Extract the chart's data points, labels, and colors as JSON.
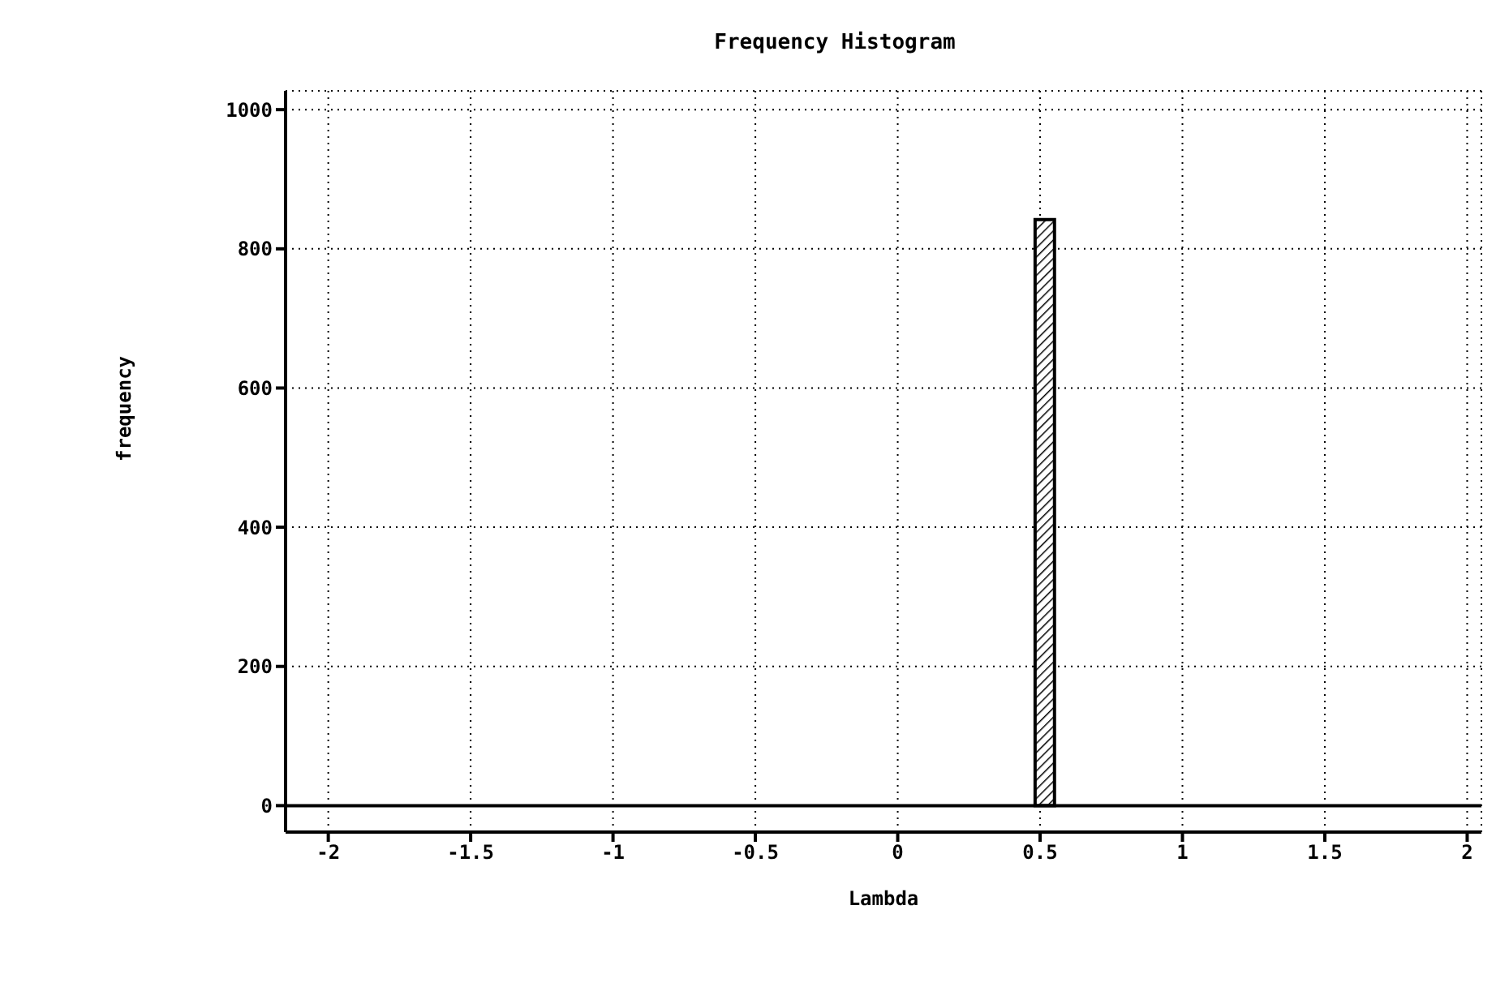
{
  "chart_data": {
    "type": "histogram",
    "title": "Frequency Histogram",
    "xlabel": "Lambda",
    "ylabel": "frequency",
    "bins": [
      0.485,
      0.548
    ],
    "values": [
      842
    ],
    "color": "#000000",
    "xlim": [
      -2.15,
      2.05
    ],
    "xticks": [
      -2,
      -1.5,
      -1,
      -0.5,
      0,
      0.5,
      1,
      1.5,
      2
    ],
    "ylim": [
      -38,
      1027
    ],
    "yticks": [
      0,
      200,
      400,
      600,
      800,
      1000
    ],
    "grid": true
  }
}
